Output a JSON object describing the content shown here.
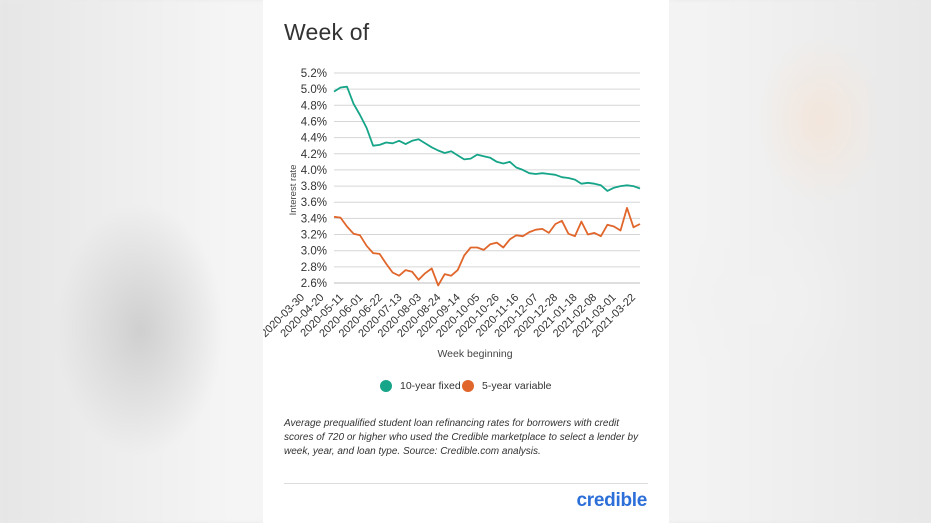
{
  "page": {
    "title": "Week of",
    "caption": "Average prequalified student loan refinancing rates for borrowers with credit scores of 720 or higher who used the Credible marketplace to select a lender by week, year, and loan type. Source: Credible.com analysis.",
    "logo_text": "credible",
    "logo_color": "#2d6fd8"
  },
  "chart_data": {
    "type": "line",
    "xlabel": "Week beginning",
    "ylabel": "Interest rate",
    "ylim": [
      2.6,
      5.2
    ],
    "y_ticks": [
      5.2,
      5.0,
      4.8,
      4.6,
      4.4,
      4.2,
      4.0,
      3.8,
      3.6,
      3.4,
      3.2,
      3.0,
      2.8,
      2.6
    ],
    "y_tick_labels": [
      "5.2%",
      "5.0%",
      "4.8%",
      "4.6%",
      "4.4%",
      "4.2%",
      "4.0%",
      "3.8%",
      "3.6%",
      "3.4%",
      "3.2%",
      "3.0%",
      "2.8%",
      "2.6%"
    ],
    "x_tick_labels": [
      "2020-03-30",
      "2020-04-20",
      "2020-05-11",
      "2020-06-01",
      "2020-06-22",
      "2020-07-13",
      "2020-08-03",
      "2020-08-24",
      "2020-09-14",
      "2020-10-05",
      "2020-10-26",
      "2020-11-16",
      "2020-12-07",
      "2020-12-28",
      "2021-01-18",
      "2021-02-08",
      "2021-03-01",
      "2021-03-22"
    ],
    "grid": "horizontal",
    "legend_position": "bottom-center",
    "series": [
      {
        "name": "10-year fixed",
        "color": "#17a589",
        "values": [
          4.97,
          5.02,
          5.03,
          4.82,
          4.68,
          4.52,
          4.3,
          4.31,
          4.34,
          4.33,
          4.36,
          4.32,
          4.36,
          4.38,
          4.33,
          4.28,
          4.24,
          4.21,
          4.23,
          4.18,
          4.13,
          4.14,
          4.19,
          4.17,
          4.15,
          4.1,
          4.08,
          4.1,
          4.03,
          4.0,
          3.96,
          3.95,
          3.96,
          3.95,
          3.94,
          3.91,
          3.9,
          3.88,
          3.83,
          3.84,
          3.83,
          3.81,
          3.74,
          3.78,
          3.8,
          3.81,
          3.8,
          3.77
        ]
      },
      {
        "name": "5-year variable",
        "color": "#e0662b",
        "values": [
          3.42,
          3.41,
          3.3,
          3.21,
          3.19,
          3.06,
          2.97,
          2.96,
          2.84,
          2.73,
          2.69,
          2.76,
          2.74,
          2.64,
          2.72,
          2.78,
          2.57,
          2.71,
          2.69,
          2.76,
          2.94,
          3.04,
          3.04,
          3.01,
          3.08,
          3.1,
          3.04,
          3.14,
          3.19,
          3.18,
          3.23,
          3.26,
          3.27,
          3.22,
          3.33,
          3.37,
          3.21,
          3.18,
          3.36,
          3.2,
          3.22,
          3.18,
          3.32,
          3.3,
          3.25,
          3.53,
          3.29,
          3.33
        ]
      }
    ]
  }
}
